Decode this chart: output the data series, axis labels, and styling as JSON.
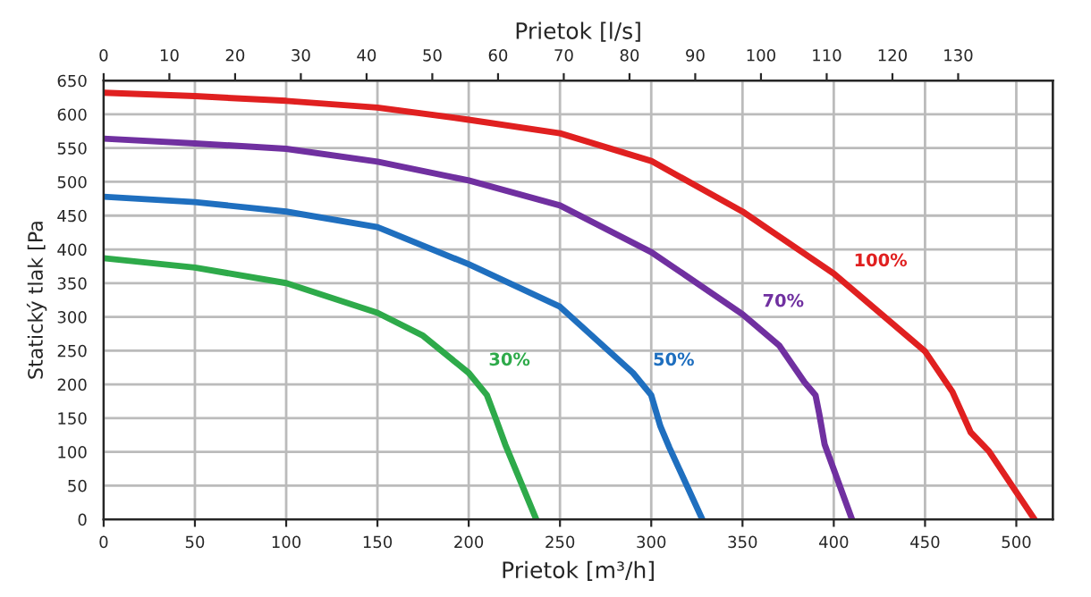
{
  "chart_data": {
    "type": "line",
    "xlabel": "Prietok [m³/h]",
    "ylabel": "Statický tlak [Pa",
    "x2label": "Prietok [l/s]",
    "xlim": [
      0,
      520
    ],
    "xticks": [
      0,
      50,
      100,
      150,
      200,
      250,
      300,
      350,
      400,
      450,
      500
    ],
    "x2lim": [
      0,
      144.4
    ],
    "x2ticks": [
      0,
      10,
      20,
      30,
      40,
      50,
      60,
      70,
      80,
      90,
      100,
      110,
      120,
      130
    ],
    "ylim": [
      0,
      650
    ],
    "yticks": [
      0,
      50,
      100,
      150,
      200,
      250,
      300,
      350,
      400,
      450,
      500,
      550,
      600,
      650
    ],
    "grid": true,
    "marker": "none",
    "line_style": "solid",
    "series": [
      {
        "name": "100%",
        "color": "#e02020",
        "x": [
          0,
          50,
          100,
          150,
          200,
          250,
          300,
          350,
          400,
          450,
          465,
          475,
          485,
          510
        ],
        "values": [
          632,
          627,
          620,
          610,
          592,
          572,
          531,
          456,
          364,
          249,
          189,
          129,
          101,
          0
        ]
      },
      {
        "name": "70%",
        "color": "#7030a0",
        "x": [
          0,
          50,
          100,
          150,
          200,
          250,
          300,
          350,
          370,
          384,
          390,
          392,
          395,
          400,
          410
        ],
        "values": [
          564,
          557,
          549,
          530,
          502,
          465,
          396,
          304,
          258,
          203,
          184,
          157,
          111,
          74,
          0
        ]
      },
      {
        "name": "50%",
        "color": "#1f6fbf",
        "x": [
          0,
          50,
          100,
          150,
          200,
          250,
          290,
          300,
          305,
          310,
          328
        ],
        "values": [
          478,
          470,
          456,
          433,
          378,
          315,
          217,
          184,
          138,
          106,
          0
        ]
      },
      {
        "name": "30%",
        "color": "#2eaa4a",
        "x": [
          0,
          50,
          100,
          150,
          175,
          200,
          210,
          215,
          220,
          237
        ],
        "values": [
          387,
          373,
          350,
          306,
          272,
          217,
          184,
          148,
          111,
          0
        ]
      }
    ]
  }
}
